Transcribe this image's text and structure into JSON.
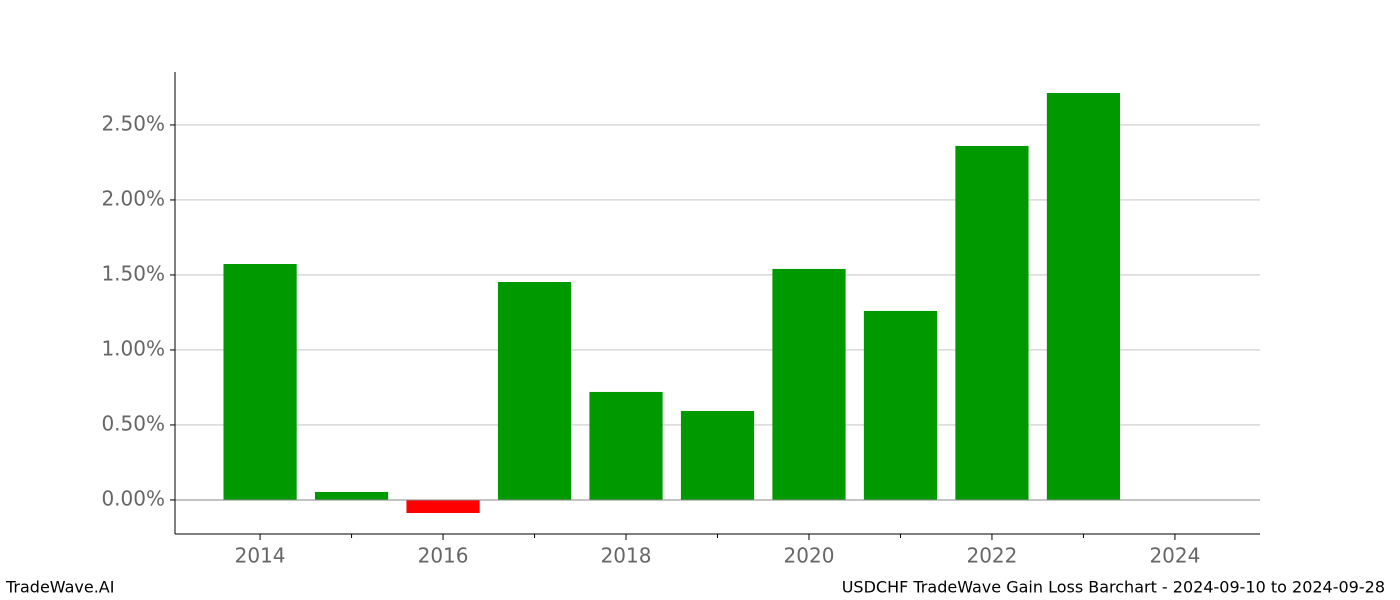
{
  "chart_data": {
    "type": "bar",
    "x": [
      2014,
      2015,
      2016,
      2017,
      2018,
      2019,
      2020,
      2021,
      2022,
      2023
    ],
    "values": [
      1.573,
      0.053,
      -0.087,
      1.453,
      0.72,
      0.593,
      1.54,
      1.26,
      2.36,
      2.713
    ],
    "positive_color": "#009900",
    "negative_color": "#ff0000",
    "bar_width": 0.8,
    "xlim": [
      2013.07,
      2024.93
    ],
    "xticks": [
      2014,
      2016,
      2018,
      2020,
      2022,
      2024
    ],
    "xminorticks": [
      2015,
      2017,
      2019,
      2021,
      2023
    ],
    "ylim": [
      -0.227,
      2.853
    ],
    "yticks": [
      {
        "value": 0,
        "label": "0.00%"
      },
      {
        "value": 0.5,
        "label": "0.50%"
      },
      {
        "value": 1,
        "label": "1.00%"
      },
      {
        "value": 1.5,
        "label": "1.50%"
      },
      {
        "value": 2,
        "label": "2.00%"
      },
      {
        "value": 2.5,
        "label": "2.50%"
      }
    ],
    "grid": true,
    "footer_left": "TradeWave.AI",
    "footer_right": "USDCHF TradeWave Gain Loss Barchart - 2024-09-10 to 2024-09-28"
  }
}
